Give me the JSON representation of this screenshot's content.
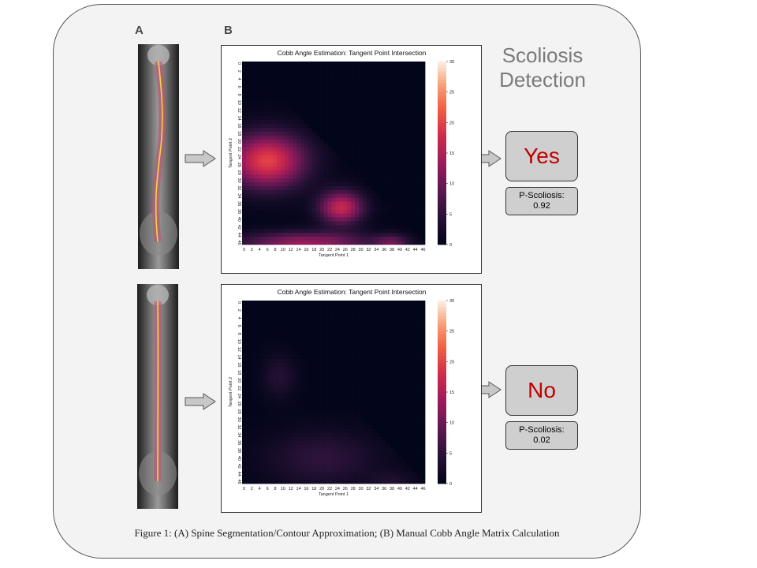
{
  "panels": {
    "a_label": "A",
    "b_label": "B"
  },
  "detection_title_line1": "Scoliosis",
  "detection_title_line2": "Detection",
  "rows": [
    {
      "result": "Yes",
      "prob_label": "P-Scoliosis:",
      "prob_value": "0.92"
    },
    {
      "result": "No",
      "prob_label": "P-Scoliosis:",
      "prob_value": "0.02"
    }
  ],
  "caption": "Figure 1: (A) Spine Segmentation/Contour Approximation; (B) Manual Cobb Angle Matrix Calculation",
  "chart_data": [
    {
      "type": "heatmap",
      "title": "Cobb Angle Estimation: Tangent Point Intersection",
      "xlabel": "Tangent Point 1",
      "ylabel": "Tangent Point 2",
      "ticks": [
        "0",
        "2",
        "4",
        "6",
        "8",
        "10",
        "12",
        "14",
        "16",
        "18",
        "20",
        "22",
        "24",
        "26",
        "28",
        "30",
        "32",
        "34",
        "36",
        "38",
        "40",
        "42",
        "44",
        "46"
      ],
      "colorbar_ticks": [
        0,
        5,
        10,
        15,
        20,
        25,
        30
      ],
      "vmin": 0,
      "vmax": 30,
      "blobs": [
        {
          "x": 6,
          "y": 25,
          "value": 20,
          "sx": 7,
          "sy": 5
        },
        {
          "x": 25,
          "y": 37,
          "value": 17,
          "sx": 4,
          "sy": 3
        },
        {
          "x": 16,
          "y": 46,
          "value": 13,
          "sx": 12,
          "sy": 2
        },
        {
          "x": 38,
          "y": 46,
          "value": 8,
          "sx": 3,
          "sy": 1.5
        }
      ]
    },
    {
      "type": "heatmap",
      "title": "Cobb Angle Estimation: Tangent Point Intersection",
      "xlabel": "Tangent Point 1",
      "ylabel": "Tangent Point 2",
      "ticks": [
        "0",
        "2",
        "4",
        "6",
        "8",
        "10",
        "12",
        "14",
        "16",
        "18",
        "20",
        "22",
        "24",
        "26",
        "28",
        "30",
        "32",
        "34",
        "36",
        "38",
        "40",
        "42",
        "44",
        "46"
      ],
      "colorbar_ticks": [
        0,
        5,
        10,
        15,
        20,
        25,
        30
      ],
      "vmin": 0,
      "vmax": 30,
      "blobs": [
        {
          "x": 9,
          "y": 19,
          "value": 4,
          "sx": 3,
          "sy": 4
        },
        {
          "x": 20,
          "y": 40,
          "value": 5,
          "sx": 10,
          "sy": 5
        },
        {
          "x": 38,
          "y": 46,
          "value": 3,
          "sx": 4,
          "sy": 2
        }
      ]
    }
  ]
}
